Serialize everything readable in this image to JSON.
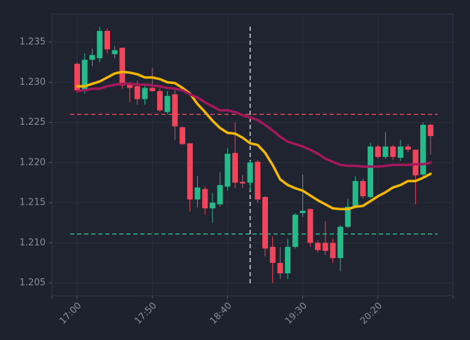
{
  "chart_data": {
    "type": "candlestick",
    "categories": [
      "17:00",
      null,
      null,
      null,
      null,
      null,
      null,
      null,
      null,
      null,
      "17:50",
      null,
      null,
      null,
      null,
      null,
      null,
      null,
      null,
      null,
      "18:40",
      null,
      null,
      null,
      null,
      null,
      null,
      null,
      null,
      null,
      "19:30",
      null,
      null,
      null,
      null,
      null,
      null,
      null,
      null,
      null,
      "20:20",
      null,
      null,
      null,
      null,
      null,
      null,
      null
    ],
    "open": [
      1.2323,
      1.2289,
      1.2328,
      1.233,
      1.2364,
      1.2335,
      1.2343,
      1.2297,
      1.2295,
      1.2279,
      1.2293,
      1.2289,
      1.2263,
      1.2285,
      1.2244,
      1.2224,
      1.2154,
      1.2167,
      1.2143,
      1.2148,
      1.217,
      1.2212,
      1.2176,
      1.2175,
      1.2201,
      1.2157,
      1.2095,
      1.2075,
      1.2062,
      1.2095,
      1.2137,
      1.2142,
      1.21,
      1.21,
      1.21,
      1.2081,
      1.212,
      1.2145,
      1.2177,
      1.2157,
      1.222,
      1.2207,
      1.222,
      1.2206,
      1.222,
      1.2216,
      1.2185,
      1.2247
    ],
    "high": [
      1.2325,
      1.2336,
      1.2342,
      1.2369,
      1.2367,
      1.2345,
      1.2343,
      1.23,
      1.2302,
      1.2296,
      1.2318,
      1.2293,
      1.2289,
      1.229,
      1.2245,
      1.2224,
      1.2183,
      1.217,
      1.2162,
      1.2188,
      1.2218,
      1.225,
      1.2185,
      1.2202,
      1.2203,
      1.2158,
      1.2108,
      1.2095,
      1.2105,
      1.2137,
      1.2185,
      1.2143,
      1.2103,
      1.2127,
      1.2105,
      1.2122,
      1.2155,
      1.2183,
      1.218,
      1.2225,
      1.2222,
      1.2238,
      1.2222,
      1.2228,
      1.2223,
      1.2216,
      1.225,
      1.2248
    ],
    "low": [
      1.2287,
      1.2286,
      1.232,
      1.2325,
      1.2336,
      1.233,
      1.2292,
      1.2275,
      1.2272,
      1.2272,
      1.2288,
      1.2263,
      1.226,
      1.2228,
      1.2222,
      1.2139,
      1.2144,
      1.2135,
      1.2125,
      1.2145,
      1.2165,
      1.2168,
      1.2168,
      1.2165,
      1.215,
      1.2083,
      1.205,
      1.2055,
      1.2055,
      1.2093,
      1.2132,
      1.2095,
      1.2088,
      1.2085,
      1.2075,
      1.2065,
      1.2118,
      1.2143,
      1.2155,
      1.2155,
      1.2205,
      1.2205,
      1.2203,
      1.2202,
      1.2213,
      1.2148,
      1.218,
      1.221
    ],
    "close": [
      1.229,
      1.2328,
      1.2334,
      1.2364,
      1.2341,
      1.234,
      1.2296,
      1.2293,
      1.2279,
      1.2293,
      1.2289,
      1.2265,
      1.2283,
      1.2245,
      1.2223,
      1.2154,
      1.2169,
      1.2143,
      1.215,
      1.2172,
      1.2211,
      1.2175,
      1.2174,
      1.22,
      1.2154,
      1.2093,
      1.2075,
      1.2062,
      1.2095,
      1.2135,
      1.214,
      1.21,
      1.2091,
      1.209,
      1.2081,
      1.212,
      1.2145,
      1.2177,
      1.2158,
      1.222,
      1.2207,
      1.222,
      1.2207,
      1.222,
      1.2216,
      1.2184,
      1.2247,
      1.2233
    ],
    "up_color": "#26b98a",
    "down_color": "#f0455a",
    "series": [
      {
        "color": "#f5b800",
        "values": [
          1.2295,
          1.2295,
          1.2298,
          1.2301,
          1.2306,
          1.2311,
          1.2313,
          1.2312,
          1.231,
          1.2306,
          1.2306,
          1.2304,
          1.23,
          1.2299,
          1.2293,
          1.2286,
          1.2273,
          1.2263,
          1.2252,
          1.2243,
          1.2237,
          1.2236,
          1.2231,
          1.2224,
          1.2222,
          1.2212,
          1.2197,
          1.2179,
          1.2172,
          1.2168,
          1.2165,
          1.2159,
          1.2153,
          1.2148,
          1.2143,
          1.2142,
          1.2142,
          1.2145,
          1.2146,
          1.2152,
          1.2158,
          1.2163,
          1.2169,
          1.2172,
          1.2177,
          1.2177,
          1.2181,
          1.2186
        ]
      },
      {
        "color": "#a3195b",
        "values": [
          1.2289,
          1.229,
          1.2292,
          1.2292,
          1.2295,
          1.2297,
          1.2298,
          1.2298,
          1.2297,
          1.2297,
          1.2296,
          1.2295,
          1.2293,
          1.2292,
          1.229,
          1.2285,
          1.2281,
          1.2275,
          1.227,
          1.2265,
          1.2265,
          1.2263,
          1.2259,
          1.2256,
          1.2253,
          1.2247,
          1.224,
          1.2232,
          1.2226,
          1.2223,
          1.222,
          1.2216,
          1.2211,
          1.2205,
          1.2201,
          1.2197,
          1.2196,
          1.2196,
          1.2195,
          1.2195,
          1.2195,
          1.2196,
          1.2197,
          1.2197,
          1.2197,
          1.2198,
          1.2198,
          1.22
        ]
      }
    ],
    "hlines": [
      {
        "value": 1.226,
        "color": "#e0485e"
      },
      {
        "value": 1.2111,
        "color": "#2bb88a"
      }
    ],
    "ylim": [
      1.2034,
      1.2385
    ],
    "yticks": [
      1.205,
      {
        "value": 1.21,
        "label": "1.210"
      },
      1.215,
      {
        "value": 1.22,
        "label": "1.220"
      },
      1.225,
      {
        "value": 1.23,
        "label": "1.230"
      },
      1.235
    ],
    "grid": true
  }
}
